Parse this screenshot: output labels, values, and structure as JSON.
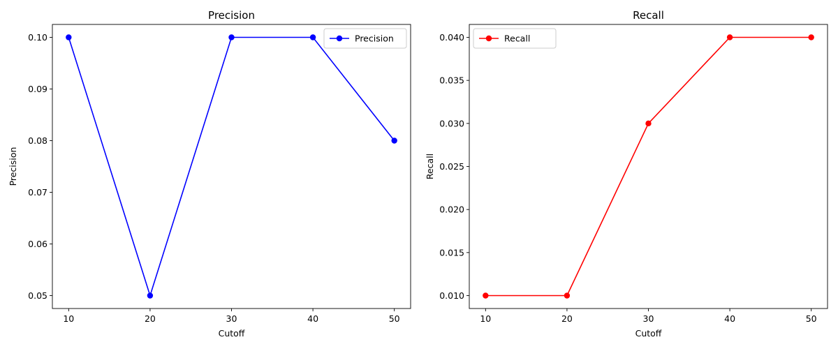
{
  "chart_data": [
    {
      "type": "line",
      "title": "Precision",
      "xlabel": "Cutoff",
      "ylabel": "Precision",
      "x": [
        10,
        20,
        30,
        40,
        50
      ],
      "xticks": [
        "10",
        "20",
        "30",
        "40",
        "50"
      ],
      "xlim": [
        8,
        52
      ],
      "ylim": [
        0.0475,
        0.1025
      ],
      "yticks": [
        0.05,
        0.06,
        0.07,
        0.08,
        0.09,
        0.1
      ],
      "yticklabels": [
        "0.05",
        "0.06",
        "0.07",
        "0.08",
        "0.09",
        "0.10"
      ],
      "series": [
        {
          "name": "Precision",
          "values": [
            0.1,
            0.05,
            0.1,
            0.1,
            0.08
          ],
          "color": "#0000ff",
          "marker": "circle"
        }
      ],
      "legend": "top-right",
      "grid": false
    },
    {
      "type": "line",
      "title": "Recall",
      "xlabel": "Cutoff",
      "ylabel": "Recall",
      "x": [
        10,
        20,
        30,
        40,
        50
      ],
      "xticks": [
        "10",
        "20",
        "30",
        "40",
        "50"
      ],
      "xlim": [
        8,
        52
      ],
      "ylim": [
        0.0085,
        0.0415
      ],
      "yticks": [
        0.01,
        0.015,
        0.02,
        0.025,
        0.03,
        0.035,
        0.04
      ],
      "yticklabels": [
        "0.010",
        "0.015",
        "0.020",
        "0.025",
        "0.030",
        "0.035",
        "0.040"
      ],
      "series": [
        {
          "name": "Recall",
          "values": [
            0.01,
            0.01,
            0.03,
            0.04,
            0.04
          ],
          "color": "#ff0000",
          "marker": "circle"
        }
      ],
      "legend": "top-left",
      "grid": false
    }
  ]
}
